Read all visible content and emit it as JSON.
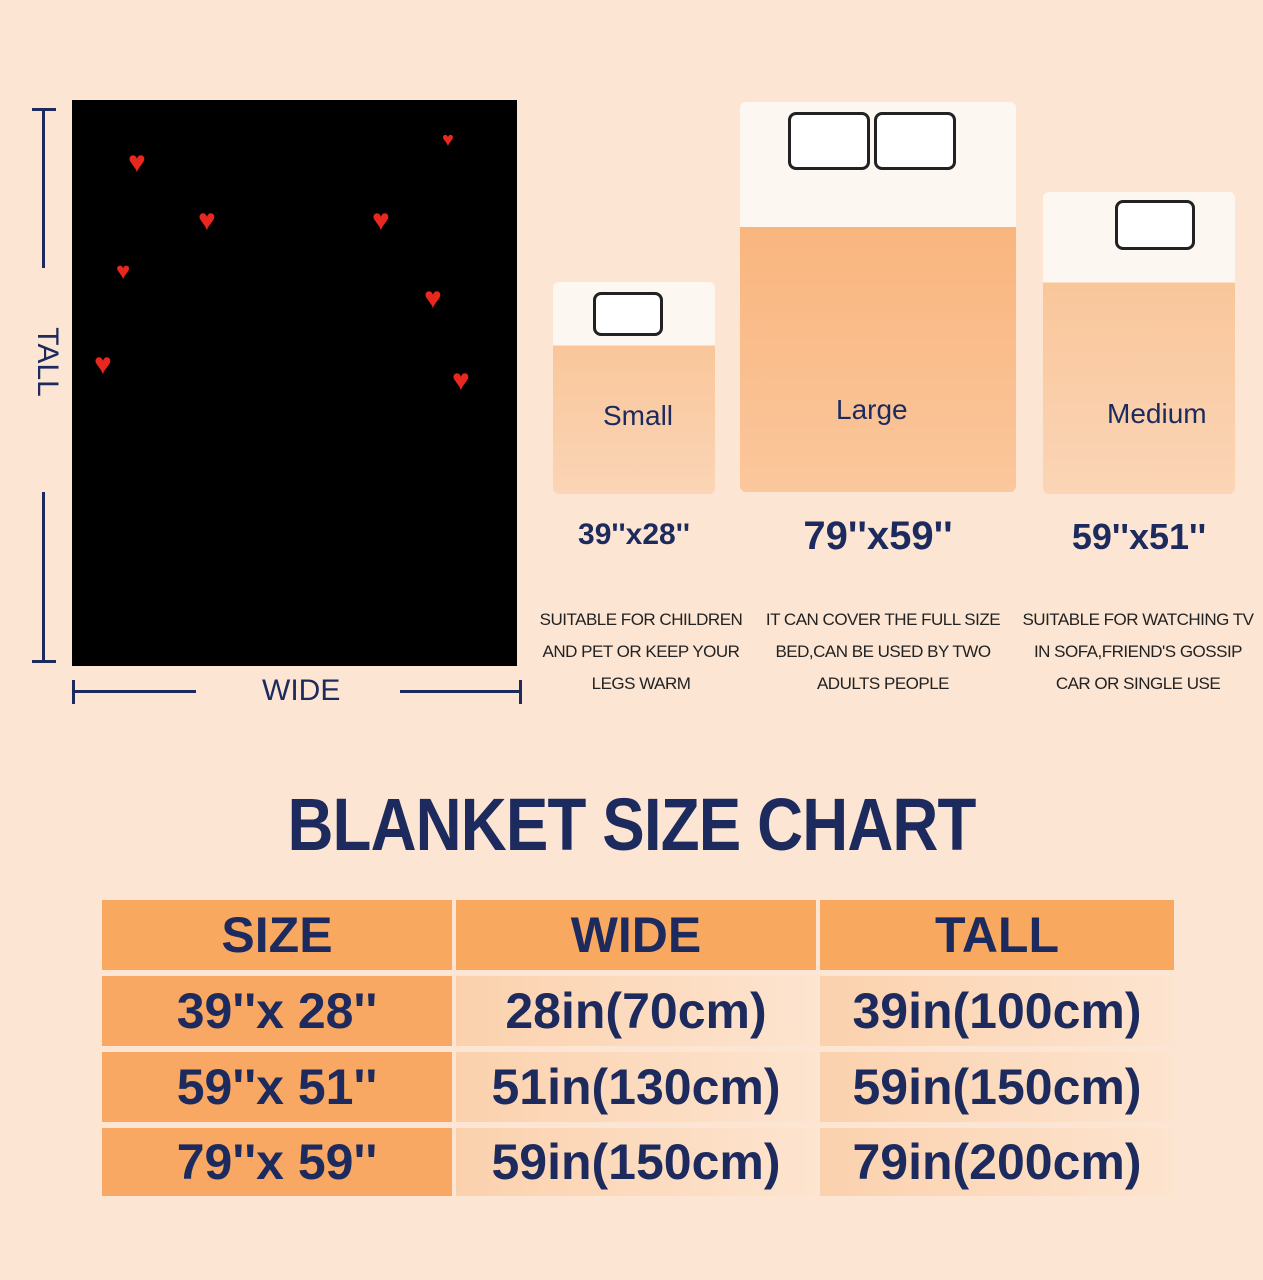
{
  "diagram": {
    "tall_label": "TALL",
    "wide_label": "WIDE"
  },
  "sizes": [
    {
      "name": "Small",
      "dim": "39''x28''",
      "desc": [
        "SUITABLE FOR CHILDREN",
        "AND PET OR KEEP YOUR",
        "LEGS WARM"
      ]
    },
    {
      "name": "Large",
      "dim": "79''x59''",
      "desc": [
        "IT CAN COVER THE FULL SIZE",
        "BED,CAN BE USED BY TWO",
        "ADULTS PEOPLE"
      ]
    },
    {
      "name": "Medium",
      "dim": "59''x51''",
      "desc": [
        "SUITABLE FOR WATCHING TV",
        "IN SOFA,FRIEND'S GOSSIP",
        "CAR OR SINGLE USE"
      ]
    }
  ],
  "title": "BLANKET SIZE CHART",
  "table": {
    "headers": [
      "SIZE",
      "WIDE",
      "TALL"
    ],
    "rows": [
      [
        "39''x 28''",
        "28in(70cm)",
        "39in(100cm)"
      ],
      [
        "59''x 51''",
        "51in(130cm)",
        "59in(150cm)"
      ],
      [
        "79''x 59''",
        "59in(150cm)",
        "79in(200cm)"
      ]
    ]
  },
  "colors": {
    "navy": "#1c2a5e",
    "orange": "#f9a860",
    "background": "#fce5d2",
    "heart": "#e8281e"
  }
}
